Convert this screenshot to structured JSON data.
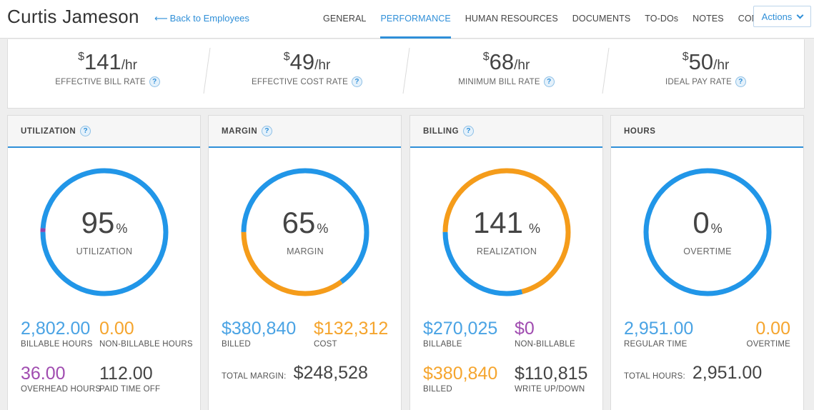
{
  "employee": {
    "name": "Curtis Jameson",
    "back_label": "Back to Employees"
  },
  "nav": {
    "tabs": [
      "GENERAL",
      "PERFORMANCE",
      "HUMAN RESOURCES",
      "DOCUMENTS",
      "TO-DOs",
      "NOTES",
      "CONTACT"
    ],
    "active": "PERFORMANCE",
    "actions_label": "Actions"
  },
  "rates": [
    {
      "currency": "$",
      "value": "141",
      "unit": "/hr",
      "label": "EFFECTIVE BILL RATE"
    },
    {
      "currency": "$",
      "value": "49",
      "unit": "/hr",
      "label": "EFFECTIVE COST RATE"
    },
    {
      "currency": "$",
      "value": "68",
      "unit": "/hr",
      "label": "MINIMUM BILL RATE"
    },
    {
      "currency": "$",
      "value": "50",
      "unit": "/hr",
      "label": "IDEAL PAY RATE"
    }
  ],
  "colors": {
    "blue": "#2196e8",
    "orange": "#f59c1a",
    "purple": "#8e44ad",
    "track": "#e6e6e6"
  },
  "cards": {
    "utilization": {
      "title": "UTILIZATION",
      "donut_value": "95",
      "donut_unit": "%",
      "donut_label": "UTILIZATION",
      "segments": [
        {
          "color": "purple",
          "fraction": 0.01
        },
        {
          "color": "blue",
          "fraction": 0.99
        }
      ],
      "stats": [
        {
          "value": "2,802.00",
          "label": "BILLABLE HOURS"
        },
        {
          "value": "0.00",
          "label": "NON-BILLABLE HOURS"
        },
        {
          "value": "36.00",
          "label": "OVERHEAD HOURS"
        },
        {
          "value": "112.00",
          "label": "PAID TIME OFF"
        }
      ]
    },
    "margin": {
      "title": "MARGIN",
      "donut_value": "65",
      "donut_unit": "%",
      "donut_label": "MARGIN",
      "segments": [
        {
          "color": "blue",
          "fraction": 0.65
        },
        {
          "color": "orange",
          "fraction": 0.35
        }
      ],
      "stats": [
        {
          "value": "$380,840",
          "label": "BILLED"
        },
        {
          "value": "$132,312",
          "label": "COST"
        }
      ],
      "total_label": "TOTAL MARGIN:",
      "total_value": "$248,528"
    },
    "billing": {
      "title": "BILLING",
      "donut_value": "141",
      "donut_unit": "%",
      "donut_label": "REALIZATION",
      "segments": [
        {
          "color": "orange",
          "fraction": 0.71
        },
        {
          "color": "blue",
          "fraction": 0.29
        }
      ],
      "stats": [
        {
          "value": "$270,025",
          "label": "BILLABLE"
        },
        {
          "value": "$0",
          "label": "NON-BILLABLE"
        },
        {
          "value": "$380,840",
          "label": "BILLED"
        },
        {
          "value": "$110,815",
          "label": "WRITE UP/DOWN"
        }
      ]
    },
    "hours": {
      "title": "HOURS",
      "donut_value": "0",
      "donut_unit": "%",
      "donut_label": "OVERTIME",
      "segments": [
        {
          "color": "blue",
          "fraction": 1.0
        }
      ],
      "stats": [
        {
          "value": "2,951.00",
          "label": "REGULAR TIME"
        },
        {
          "value": "0.00",
          "label": "OVERTIME"
        }
      ],
      "total_label": "TOTAL HOURS:",
      "total_value": "2,951.00"
    }
  }
}
